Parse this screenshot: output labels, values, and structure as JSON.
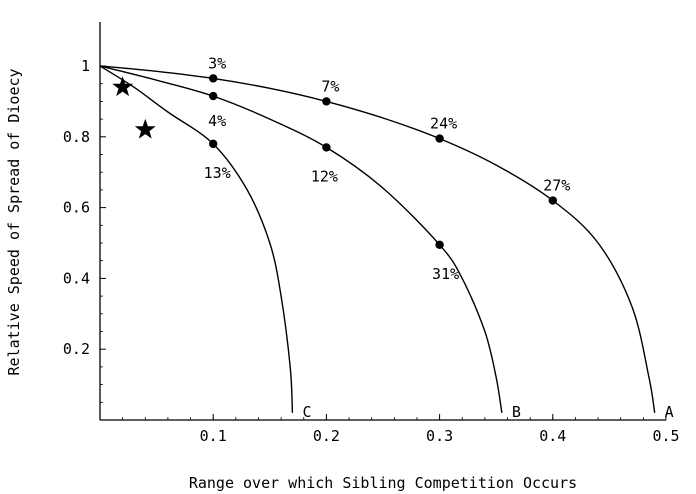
{
  "chart_data": {
    "type": "line",
    "title": "",
    "xlabel": "Range over which Sibling Competition Occurs",
    "ylabel": "Relative Speed of Spread of Dioecy",
    "xlim": [
      0,
      0.5
    ],
    "ylim": [
      0,
      1
    ],
    "xticks": [
      {
        "value": 0.1,
        "label": "0.1"
      },
      {
        "value": 0.2,
        "label": "0.2"
      },
      {
        "value": 0.3,
        "label": "0.3"
      },
      {
        "value": 0.4,
        "label": "0.4"
      },
      {
        "value": 0.5,
        "label": "0.5"
      }
    ],
    "yticks": [
      {
        "value": 0.2,
        "label": "0.2"
      },
      {
        "value": 0.4,
        "label": "0.4"
      },
      {
        "value": 0.6,
        "label": "0.6"
      },
      {
        "value": 0.8,
        "label": "0.8"
      },
      {
        "value": 1.0,
        "label": "1"
      }
    ],
    "grid": false,
    "series": [
      {
        "name": "A",
        "x": [
          0,
          0.05,
          0.1,
          0.15,
          0.2,
          0.25,
          0.3,
          0.35,
          0.4,
          0.44,
          0.47,
          0.485,
          0.49
        ],
        "y": [
          1.0,
          0.985,
          0.965,
          0.937,
          0.9,
          0.853,
          0.795,
          0.72,
          0.62,
          0.5,
          0.32,
          0.12,
          0.02
        ],
        "points": [
          {
            "x": 0.1,
            "y": 0.965,
            "label": "3%"
          },
          {
            "x": 0.2,
            "y": 0.9,
            "label": "7%"
          },
          {
            "x": 0.3,
            "y": 0.795,
            "label": "24%"
          },
          {
            "x": 0.4,
            "y": 0.62,
            "label": "27%"
          }
        ]
      },
      {
        "name": "B",
        "x": [
          0,
          0.05,
          0.1,
          0.15,
          0.2,
          0.25,
          0.3,
          0.32,
          0.34,
          0.35,
          0.355
        ],
        "y": [
          1.0,
          0.96,
          0.915,
          0.85,
          0.77,
          0.655,
          0.495,
          0.4,
          0.25,
          0.12,
          0.02
        ],
        "points": [
          {
            "x": 0.1,
            "y": 0.915,
            "label": "4%"
          },
          {
            "x": 0.2,
            "y": 0.77,
            "label": "12%"
          },
          {
            "x": 0.3,
            "y": 0.495,
            "label": "31%"
          }
        ]
      },
      {
        "name": "C",
        "x": [
          0,
          0.03,
          0.06,
          0.1,
          0.13,
          0.15,
          0.16,
          0.168,
          0.17
        ],
        "y": [
          1.0,
          0.94,
          0.87,
          0.78,
          0.65,
          0.5,
          0.35,
          0.15,
          0.02
        ],
        "points": [
          {
            "x": 0.1,
            "y": 0.78,
            "label": "13%"
          }
        ]
      }
    ],
    "stars": [
      {
        "x": 0.02,
        "y": 0.94
      },
      {
        "x": 0.04,
        "y": 0.82
      }
    ]
  }
}
